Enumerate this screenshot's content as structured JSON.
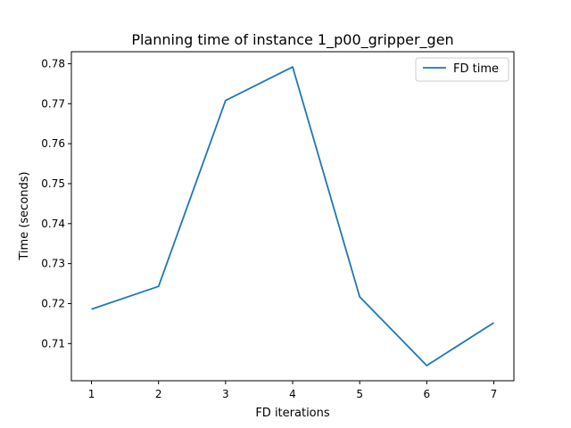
{
  "chart_data": {
    "type": "line",
    "title": "Planning time of instance 1_p00_gripper_gen",
    "xlabel": "FD iterations",
    "ylabel": "Time (seconds)",
    "x": [
      1,
      2,
      3,
      4,
      5,
      6,
      7
    ],
    "series": [
      {
        "name": "FD time",
        "color": "#1f77b4",
        "values": [
          0.7186,
          0.7243,
          0.7708,
          0.7792,
          0.7217,
          0.7045,
          0.7152
        ]
      }
    ],
    "xlim": [
      0.7,
      7.3
    ],
    "ylim": [
      0.7007,
      0.783
    ],
    "xticks": [
      "1",
      "2",
      "3",
      "4",
      "5",
      "6",
      "7"
    ],
    "yticks": [
      "0.71",
      "0.72",
      "0.73",
      "0.74",
      "0.75",
      "0.76",
      "0.77",
      "0.78"
    ],
    "grid": false,
    "legend_position": "top-right"
  }
}
